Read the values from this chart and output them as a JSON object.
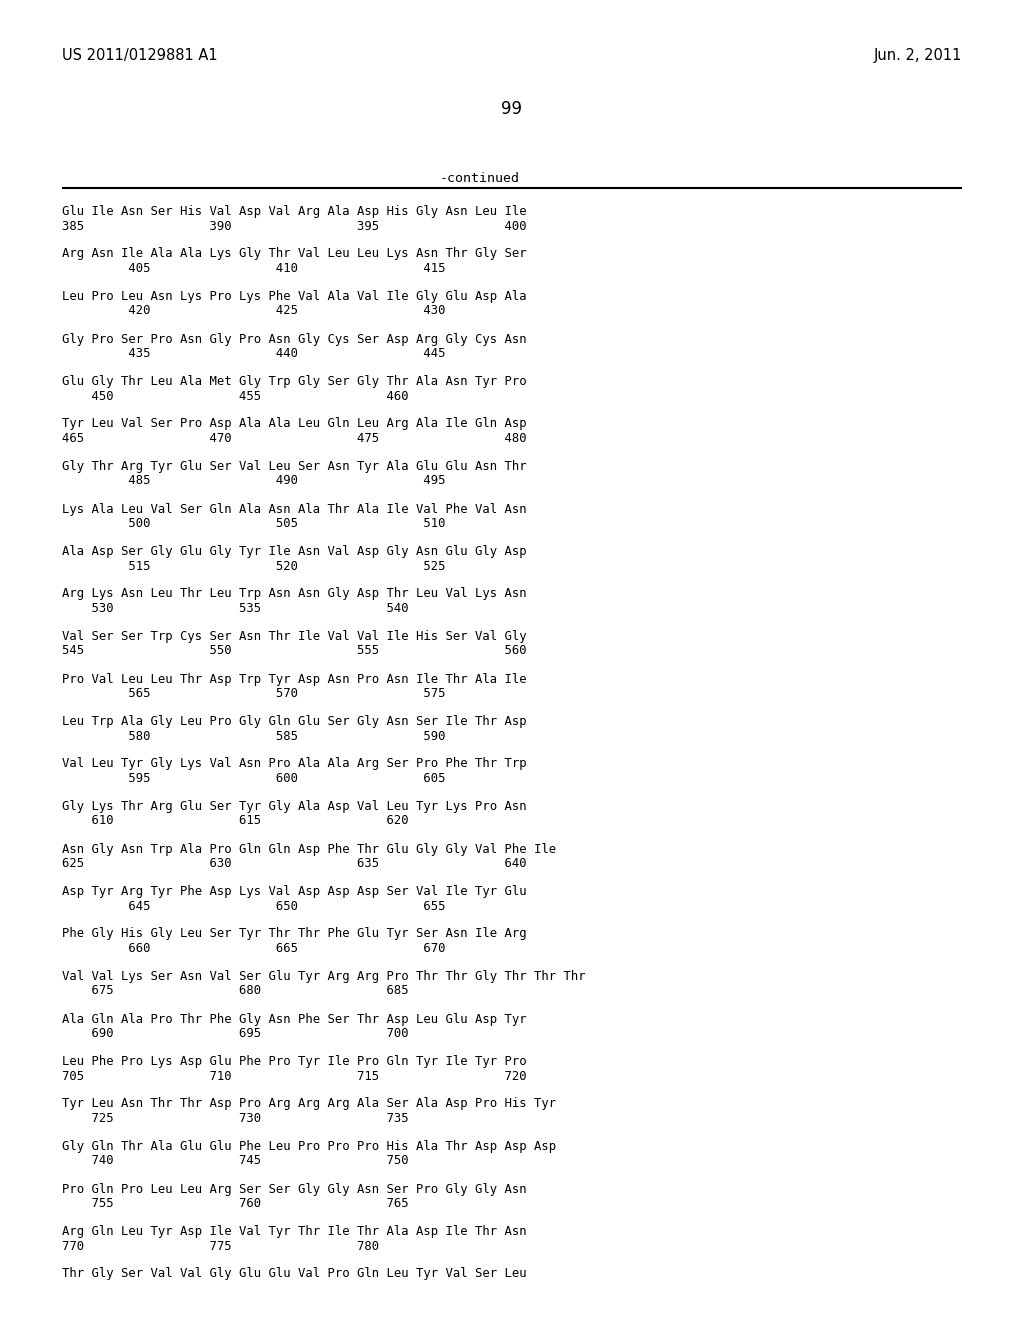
{
  "left_header": "US 2011/0129881 A1",
  "right_header": "Jun. 2, 2011",
  "page_number": "99",
  "continued_label": "-continued",
  "sequence_blocks": [
    {
      "aa": "Glu Ile Asn Ser His Val Asp Val Arg Ala Asp His Gly Asn Leu Ile",
      "nums": "385                 390                 395                 400",
      "num_indent": 0
    },
    {
      "aa": "Arg Asn Ile Ala Ala Lys Gly Thr Val Leu Leu Lys Asn Thr Gly Ser",
      "nums": "         405                 410                 415",
      "num_indent": 0
    },
    {
      "aa": "Leu Pro Leu Asn Lys Pro Lys Phe Val Ala Val Ile Gly Glu Asp Ala",
      "nums": "         420                 425                 430",
      "num_indent": 0
    },
    {
      "aa": "Gly Pro Ser Pro Asn Gly Pro Asn Gly Cys Ser Asp Arg Gly Cys Asn",
      "nums": "         435                 440                 445",
      "num_indent": 0
    },
    {
      "aa": "Glu Gly Thr Leu Ala Met Gly Trp Gly Ser Gly Thr Ala Asn Tyr Pro",
      "nums": "    450                 455                 460",
      "num_indent": 0
    },
    {
      "aa": "Tyr Leu Val Ser Pro Asp Ala Ala Leu Gln Leu Arg Ala Ile Gln Asp",
      "nums": "465                 470                 475                 480",
      "num_indent": 0
    },
    {
      "aa": "Gly Thr Arg Tyr Glu Ser Val Leu Ser Asn Tyr Ala Glu Glu Asn Thr",
      "nums": "         485                 490                 495",
      "num_indent": 0
    },
    {
      "aa": "Lys Ala Leu Val Ser Gln Ala Asn Ala Thr Ala Ile Val Phe Val Asn",
      "nums": "         500                 505                 510",
      "num_indent": 0
    },
    {
      "aa": "Ala Asp Ser Gly Glu Gly Tyr Ile Asn Val Asp Gly Asn Glu Gly Asp",
      "nums": "         515                 520                 525",
      "num_indent": 0
    },
    {
      "aa": "Arg Lys Asn Leu Thr Leu Trp Asn Asn Gly Asp Thr Leu Val Lys Asn",
      "nums": "    530                 535                 540",
      "num_indent": 0
    },
    {
      "aa": "Val Ser Ser Trp Cys Ser Asn Thr Ile Val Val Ile His Ser Val Gly",
      "nums": "545                 550                 555                 560",
      "num_indent": 0
    },
    {
      "aa": "Pro Val Leu Leu Thr Asp Trp Tyr Asp Asn Pro Asn Ile Thr Ala Ile",
      "nums": "         565                 570                 575",
      "num_indent": 0
    },
    {
      "aa": "Leu Trp Ala Gly Leu Pro Gly Gln Glu Ser Gly Asn Ser Ile Thr Asp",
      "nums": "         580                 585                 590",
      "num_indent": 0
    },
    {
      "aa": "Val Leu Tyr Gly Lys Val Asn Pro Ala Ala Arg Ser Pro Phe Thr Trp",
      "nums": "         595                 600                 605",
      "num_indent": 0
    },
    {
      "aa": "Gly Lys Thr Arg Glu Ser Tyr Gly Ala Asp Val Leu Tyr Lys Pro Asn",
      "nums": "    610                 615                 620",
      "num_indent": 0
    },
    {
      "aa": "Asn Gly Asn Trp Ala Pro Gln Gln Asp Phe Thr Glu Gly Gly Val Phe Ile",
      "nums": "625                 630                 635                 640",
      "num_indent": 0
    },
    {
      "aa": "Asp Tyr Arg Tyr Phe Asp Lys Val Asp Asp Asp Ser Val Ile Tyr Glu",
      "nums": "         645                 650                 655",
      "num_indent": 0
    },
    {
      "aa": "Phe Gly His Gly Leu Ser Tyr Thr Thr Phe Glu Tyr Ser Asn Ile Arg",
      "nums": "         660                 665                 670",
      "num_indent": 0
    },
    {
      "aa": "Val Val Lys Ser Asn Val Ser Glu Tyr Arg Arg Pro Thr Thr Gly Thr Thr Thr",
      "nums": "    675                 680                 685",
      "num_indent": 0
    },
    {
      "aa": "Ala Gln Ala Pro Thr Phe Gly Asn Phe Ser Thr Asp Leu Glu Asp Tyr",
      "nums": "    690                 695                 700",
      "num_indent": 0
    },
    {
      "aa": "Leu Phe Pro Lys Asp Glu Phe Pro Tyr Ile Pro Gln Tyr Ile Tyr Pro",
      "nums": "705                 710                 715                 720",
      "num_indent": 0
    },
    {
      "aa": "Tyr Leu Asn Thr Thr Asp Pro Arg Arg Arg Ala Ser Ala Asp Pro His Tyr",
      "nums": "    725                 730                 735",
      "num_indent": 0
    },
    {
      "aa": "Gly Gln Thr Ala Glu Glu Phe Leu Pro Pro Pro His Ala Thr Asp Asp Asp",
      "nums": "    740                 745                 750",
      "num_indent": 0
    },
    {
      "aa": "Pro Gln Pro Leu Leu Arg Ser Ser Gly Gly Asn Ser Pro Gly Gly Asn",
      "nums": "    755                 760                 765",
      "num_indent": 0
    },
    {
      "aa": "Arg Gln Leu Tyr Asp Ile Val Tyr Thr Ile Thr Ala Asp Ile Thr Asn",
      "nums": "770                 775                 780",
      "num_indent": 0
    },
    {
      "aa": "Thr Gly Ser Val Val Gly Glu Glu Val Pro Gln Leu Tyr Val Ser Leu",
      "nums": "",
      "num_indent": 0
    }
  ]
}
